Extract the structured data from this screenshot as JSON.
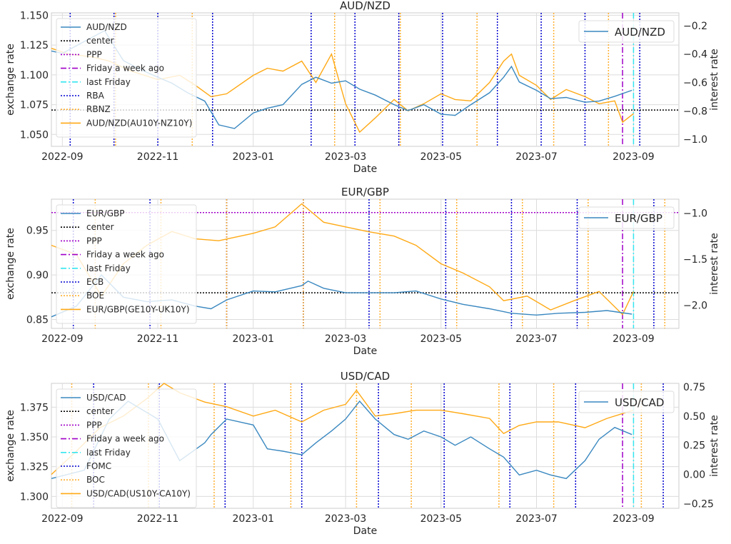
{
  "chart_data": [
    {
      "type": "line",
      "title": "AUD/NZD",
      "xlabel": "Date",
      "ylabel_left": "exchange rate",
      "ylabel_right": "interest rate",
      "x_range": [
        "2022-08-25",
        "2023-09-30"
      ],
      "x_ticks": [
        "2022-09",
        "2022-11",
        "2023-01",
        "2023-03",
        "2023-05",
        "2023-07",
        "2023-09"
      ],
      "ylim_left": [
        1.04,
        1.152
      ],
      "ylim_right": [
        -1.05,
        -0.11
      ],
      "yticks_left": [
        "1.050",
        "1.075",
        "1.100",
        "1.125",
        "1.150"
      ],
      "yticks_right": [
        "−1.0",
        "−0.8",
        "−0.6",
        "−0.4",
        "−0.2"
      ],
      "grid": true,
      "legend_left": [
        "AUD/NZD",
        "center",
        "PPP",
        "Friday a week ago",
        "last Friday",
        "RBA",
        "RBNZ",
        "AUD/NZD(AU10Y-NZ10Y)"
      ],
      "legend_right": [
        "AUD/NZD"
      ],
      "center": 1.0705,
      "ppp_visible": false,
      "friday_week_ago": "2023-08-25",
      "last_friday": "2023-09-01",
      "cb1_dates": [
        "2022-09-06",
        "2022-10-04",
        "2022-11-01",
        "2022-12-06",
        "2023-02-07",
        "2023-03-07",
        "2023-04-04",
        "2023-05-02",
        "2023-06-06",
        "2023-07-04",
        "2023-08-01",
        "2023-09-05"
      ],
      "cb2_dates": [
        "2022-10-05",
        "2022-11-23",
        "2023-02-22",
        "2023-04-05",
        "2023-05-24",
        "2023-07-12",
        "2023-08-16"
      ],
      "series_left": {
        "name": "AUD/NZD",
        "x": [
          "2022-08-25",
          "2022-09-01",
          "2022-09-15",
          "2022-09-28",
          "2022-10-10",
          "2022-10-20",
          "2022-11-01",
          "2022-11-10",
          "2022-11-20",
          "2022-12-01",
          "2022-12-10",
          "2022-12-20",
          "2023-01-01",
          "2023-01-10",
          "2023-01-20",
          "2023-02-01",
          "2023-02-10",
          "2023-02-20",
          "2023-03-01",
          "2023-03-10",
          "2023-03-20",
          "2023-04-01",
          "2023-04-10",
          "2023-04-20",
          "2023-05-01",
          "2023-05-10",
          "2023-05-20",
          "2023-06-01",
          "2023-06-10",
          "2023-06-15",
          "2023-06-20",
          "2023-07-01",
          "2023-07-10",
          "2023-07-20",
          "2023-08-01",
          "2023-08-10",
          "2023-08-20",
          "2023-08-31"
        ],
        "values": [
          1.12,
          1.118,
          1.128,
          1.137,
          1.112,
          1.105,
          1.098,
          1.093,
          1.085,
          1.078,
          1.058,
          1.055,
          1.068,
          1.072,
          1.075,
          1.092,
          1.098,
          1.093,
          1.095,
          1.088,
          1.083,
          1.075,
          1.07,
          1.075,
          1.067,
          1.066,
          1.075,
          1.085,
          1.098,
          1.107,
          1.094,
          1.087,
          1.08,
          1.081,
          1.077,
          1.078,
          1.082,
          1.087
        ]
      },
      "series_right": {
        "name": "AUD/NZD(AU10Y-NZ10Y)",
        "x": [
          "2022-08-25",
          "2022-09-05",
          "2022-09-20",
          "2022-10-01",
          "2022-10-15",
          "2022-11-01",
          "2022-11-15",
          "2022-11-25",
          "2022-12-05",
          "2022-12-15",
          "2023-01-01",
          "2023-01-10",
          "2023-01-20",
          "2023-02-01",
          "2023-02-10",
          "2023-02-20",
          "2023-03-01",
          "2023-03-10",
          "2023-03-20",
          "2023-04-01",
          "2023-04-10",
          "2023-04-20",
          "2023-05-01",
          "2023-05-10",
          "2023-05-20",
          "2023-06-01",
          "2023-06-10",
          "2023-06-15",
          "2023-06-20",
          "2023-07-01",
          "2023-07-10",
          "2023-07-20",
          "2023-08-01",
          "2023-08-10",
          "2023-08-20",
          "2023-08-25",
          "2023-09-01"
        ],
        "values": [
          -0.36,
          -0.4,
          -0.42,
          -0.45,
          -0.52,
          -0.58,
          -0.55,
          -0.62,
          -0.7,
          -0.68,
          -0.55,
          -0.5,
          -0.52,
          -0.45,
          -0.6,
          -0.4,
          -0.75,
          -0.95,
          -0.85,
          -0.72,
          -0.8,
          -0.75,
          -0.68,
          -0.72,
          -0.73,
          -0.6,
          -0.45,
          -0.4,
          -0.55,
          -0.62,
          -0.72,
          -0.65,
          -0.7,
          -0.75,
          -0.73,
          -0.88,
          -0.82
        ]
      }
    },
    {
      "type": "line",
      "title": "EUR/GBP",
      "xlabel": "Date",
      "ylabel_left": "exchange rate",
      "ylabel_right": "interest rate",
      "x_range": [
        "2022-08-25",
        "2023-09-30"
      ],
      "x_ticks": [
        "2022-09",
        "2022-11",
        "2023-01",
        "2023-03",
        "2023-05",
        "2023-07",
        "2023-09"
      ],
      "ylim_left": [
        0.84,
        0.985
      ],
      "ylim_right": [
        -2.25,
        -0.85
      ],
      "yticks_left": [
        "0.85",
        "0.90",
        "0.95"
      ],
      "yticks_right": [
        "−2.0",
        "−1.5",
        "−1.0"
      ],
      "grid": true,
      "legend_left": [
        "EUR/GBP",
        "center",
        "PPP",
        "Friday a week ago",
        "last Friday",
        "ECB",
        "BOE",
        "EUR/GBP(GE10Y-UK10Y)"
      ],
      "legend_right": [
        "EUR/GBP"
      ],
      "center": 0.88,
      "ppp": 0.97,
      "friday_week_ago": "2023-08-25",
      "last_friday": "2023-09-01",
      "cb1_dates": [
        "2022-09-08",
        "2022-10-27",
        "2022-12-15",
        "2023-02-02",
        "2023-03-16",
        "2023-05-04",
        "2023-06-15",
        "2023-07-27",
        "2023-09-14"
      ],
      "cb2_dates": [
        "2022-09-22",
        "2022-11-03",
        "2022-12-15",
        "2023-02-02",
        "2023-03-23",
        "2023-05-11",
        "2023-06-22",
        "2023-08-03",
        "2023-09-21"
      ],
      "series_left": {
        "name": "EUR/GBP",
        "x": [
          "2022-08-25",
          "2022-09-10",
          "2022-09-26",
          "2022-10-10",
          "2022-10-25",
          "2022-11-10",
          "2022-11-25",
          "2022-12-05",
          "2022-12-15",
          "2023-01-01",
          "2023-01-15",
          "2023-02-01",
          "2023-02-05",
          "2023-02-15",
          "2023-03-01",
          "2023-03-15",
          "2023-04-01",
          "2023-04-15",
          "2023-05-01",
          "2023-05-15",
          "2023-06-01",
          "2023-06-15",
          "2023-07-01",
          "2023-07-15",
          "2023-08-01",
          "2023-08-15",
          "2023-08-31"
        ],
        "values": [
          0.853,
          0.865,
          0.9,
          0.875,
          0.87,
          0.872,
          0.865,
          0.862,
          0.872,
          0.882,
          0.881,
          0.888,
          0.893,
          0.885,
          0.88,
          0.88,
          0.88,
          0.882,
          0.873,
          0.867,
          0.862,
          0.857,
          0.855,
          0.857,
          0.858,
          0.86,
          0.856
        ]
      },
      "series_right": {
        "name": "EUR/GBP(GE10Y-UK10Y)",
        "x": [
          "2022-08-25",
          "2022-09-10",
          "2022-09-26",
          "2022-10-10",
          "2022-10-25",
          "2022-11-10",
          "2022-11-25",
          "2022-12-10",
          "2023-01-01",
          "2023-01-15",
          "2023-02-01",
          "2023-02-15",
          "2023-03-01",
          "2023-03-15",
          "2023-04-01",
          "2023-04-15",
          "2023-05-01",
          "2023-05-15",
          "2023-06-01",
          "2023-06-10",
          "2023-06-25",
          "2023-07-10",
          "2023-07-25",
          "2023-08-10",
          "2023-08-25",
          "2023-09-01"
        ],
        "values": [
          -1.35,
          -1.45,
          -1.9,
          -1.55,
          -1.35,
          -1.2,
          -1.28,
          -1.3,
          -1.22,
          -1.15,
          -0.9,
          -1.1,
          -1.15,
          -1.2,
          -1.25,
          -1.35,
          -1.55,
          -1.65,
          -1.8,
          -1.95,
          -1.9,
          -2.05,
          -1.95,
          -1.85,
          -2.1,
          -1.85
        ]
      }
    },
    {
      "type": "line",
      "title": "USD/CAD",
      "xlabel": "Date",
      "ylabel_left": "exchange rate",
      "ylabel_right": "interest rate",
      "x_range": [
        "2022-08-25",
        "2023-09-30"
      ],
      "x_ticks": [
        "2022-09",
        "2022-11",
        "2023-01",
        "2023-03",
        "2023-05",
        "2023-07",
        "2023-09"
      ],
      "ylim_left": [
        1.29,
        1.395
      ],
      "ylim_right": [
        -0.29,
        0.78
      ],
      "yticks_left": [
        "1.300",
        "1.325",
        "1.350",
        "1.375"
      ],
      "yticks_right": [
        "−0.25",
        "0.00",
        "0.25",
        "0.50",
        "0.75"
      ],
      "grid": true,
      "legend_left": [
        "USD/CAD",
        "center",
        "PPP",
        "Friday a week ago",
        "last Friday",
        "FOMC",
        "BOC",
        "USD/CAD(US10Y-CA10Y)"
      ],
      "legend_right": [
        "USD/CAD"
      ],
      "ppp_visible": false,
      "friday_week_ago": "2023-08-25",
      "last_friday": "2023-09-01",
      "cb1_dates": [
        "2022-09-21",
        "2022-11-02",
        "2022-12-14",
        "2023-02-01",
        "2023-03-22",
        "2023-05-03",
        "2023-06-14",
        "2023-07-26",
        "2023-09-20"
      ],
      "cb2_dates": [
        "2022-09-07",
        "2022-10-26",
        "2022-12-07",
        "2023-01-25",
        "2023-03-08",
        "2023-04-12",
        "2023-06-07",
        "2023-07-12",
        "2023-09-06"
      ],
      "series_left": {
        "name": "USD/CAD",
        "x": [
          "2022-08-25",
          "2022-09-15",
          "2022-10-01",
          "2022-10-13",
          "2022-11-01",
          "2022-11-15",
          "2022-12-01",
          "2022-12-05",
          "2022-12-15",
          "2023-01-01",
          "2023-01-10",
          "2023-01-20",
          "2023-02-01",
          "2023-02-10",
          "2023-02-20",
          "2023-03-01",
          "2023-03-10",
          "2023-03-20",
          "2023-04-01",
          "2023-04-10",
          "2023-04-20",
          "2023-05-01",
          "2023-05-10",
          "2023-05-20",
          "2023-06-01",
          "2023-06-10",
          "2023-06-20",
          "2023-07-01",
          "2023-07-10",
          "2023-07-20",
          "2023-08-01",
          "2023-08-10",
          "2023-08-20",
          "2023-08-31"
        ],
        "values": [
          1.315,
          1.322,
          1.365,
          1.38,
          1.365,
          1.33,
          1.345,
          1.352,
          1.365,
          1.36,
          1.34,
          1.338,
          1.335,
          1.345,
          1.355,
          1.365,
          1.38,
          1.365,
          1.352,
          1.348,
          1.355,
          1.35,
          1.343,
          1.35,
          1.34,
          1.333,
          1.318,
          1.322,
          1.318,
          1.315,
          1.33,
          1.348,
          1.358,
          1.352
        ]
      },
      "series_right": {
        "name": "USD/CAD(US10Y-CA10Y)",
        "x": [
          "2022-08-25",
          "2022-09-10",
          "2022-09-25",
          "2022-10-10",
          "2022-10-25",
          "2022-11-05",
          "2022-11-15",
          "2022-12-01",
          "2022-12-15",
          "2023-01-01",
          "2023-01-15",
          "2023-02-01",
          "2023-02-15",
          "2023-03-01",
          "2023-03-08",
          "2023-03-20",
          "2023-04-01",
          "2023-04-15",
          "2023-05-01",
          "2023-05-15",
          "2023-06-01",
          "2023-06-10",
          "2023-06-20",
          "2023-07-01",
          "2023-07-15",
          "2023-08-01",
          "2023-08-15",
          "2023-09-01"
        ],
        "values": [
          0.0,
          0.2,
          0.4,
          0.5,
          0.65,
          0.78,
          0.7,
          0.62,
          0.58,
          0.5,
          0.55,
          0.45,
          0.55,
          0.6,
          0.72,
          0.5,
          0.52,
          0.55,
          0.55,
          0.52,
          0.48,
          0.35,
          0.42,
          0.45,
          0.45,
          0.4,
          0.48,
          0.55
        ]
      }
    }
  ]
}
